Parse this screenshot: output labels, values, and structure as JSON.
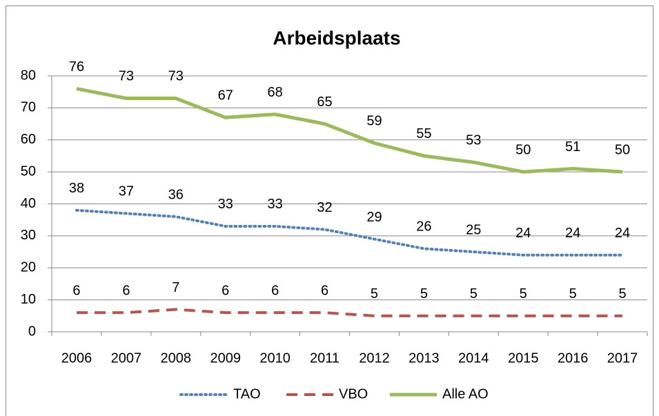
{
  "chart_data": {
    "type": "line",
    "title": "Arbeidsplaats",
    "categories": [
      "2006",
      "2007",
      "2008",
      "2009",
      "2010",
      "2011",
      "2012",
      "2013",
      "2014",
      "2015",
      "2016",
      "2017"
    ],
    "series": [
      {
        "name": "TAO",
        "color": "#4f81bd",
        "style": "dotted",
        "values": [
          38,
          37,
          36,
          33,
          33,
          32,
          29,
          26,
          25,
          24,
          24,
          24
        ]
      },
      {
        "name": "VBO",
        "color": "#c0504d",
        "style": "dashed",
        "values": [
          6,
          6,
          7,
          6,
          6,
          6,
          5,
          5,
          5,
          5,
          5,
          5
        ]
      },
      {
        "name": "Alle AO",
        "color": "#9bbb59",
        "style": "solid",
        "values": [
          76,
          73,
          73,
          67,
          68,
          65,
          59,
          55,
          53,
          50,
          51,
          50
        ]
      }
    ],
    "ylim": [
      0,
      80
    ],
    "yticks": [
      0,
      10,
      20,
      30,
      40,
      50,
      60,
      70,
      80
    ],
    "grid": true,
    "legend": "bottom"
  }
}
